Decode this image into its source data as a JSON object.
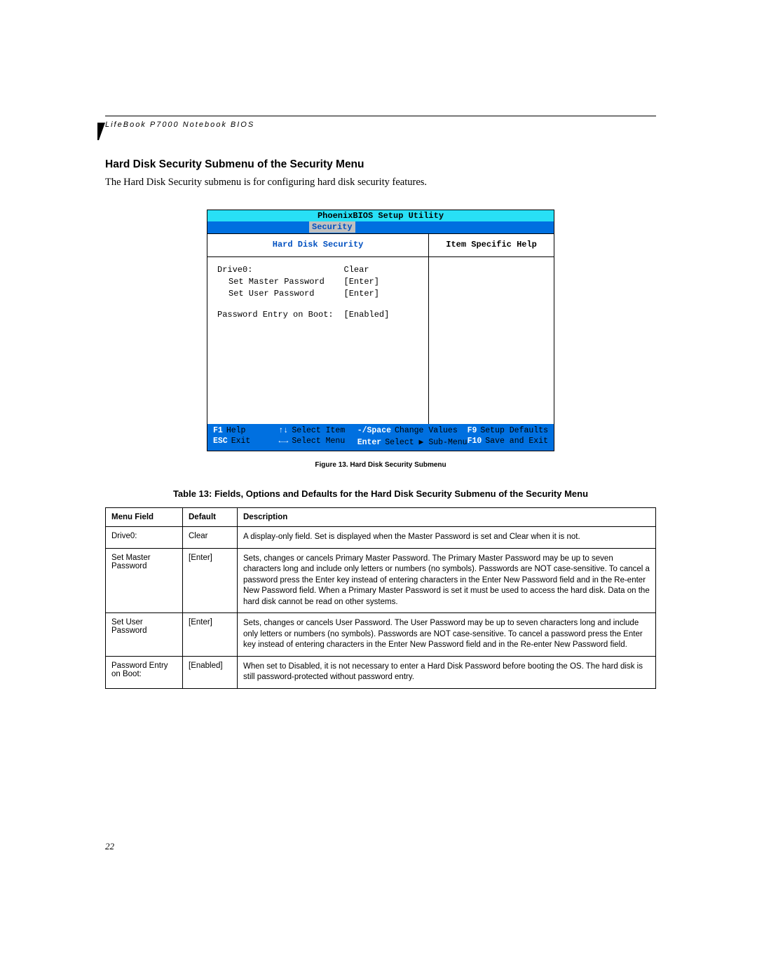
{
  "header": "LifeBook P7000 Notebook BIOS",
  "section_title": "Hard Disk Security Submenu of the Security Menu",
  "intro": "The Hard Disk Security submenu is for configuring hard disk security features.",
  "bios": {
    "title": "PhoenixBIOS Setup Utility",
    "menu_tab": "Security",
    "left_title": "Hard Disk Security",
    "right_title": "Item Specific Help",
    "rows": [
      {
        "label": "Drive0:",
        "value": "Clear",
        "indent": false
      },
      {
        "label": "Set Master Password",
        "value": "[Enter]",
        "indent": true
      },
      {
        "label": "Set User Password",
        "value": "[Enter]",
        "indent": true
      }
    ],
    "extra_row": {
      "label": "Password Entry on Boot:",
      "value": "[Enabled]"
    },
    "footer": [
      {
        "key": "F1",
        "text": "Help"
      },
      {
        "key": "↑↓",
        "text": "Select Item"
      },
      {
        "key": "-/Space",
        "text": "Change Values"
      },
      {
        "key": "F9",
        "text": "Setup Defaults"
      },
      {
        "key": "ESC",
        "text": "Exit"
      },
      {
        "key": "←→",
        "text": "Select Menu"
      },
      {
        "key": "Enter",
        "text": "Select ▶ Sub-Menu"
      },
      {
        "key": "F10",
        "text": "Save and Exit"
      }
    ]
  },
  "figure_caption": "Figure 13.    Hard Disk Security Submenu",
  "table_title": "Table 13: Fields, Options and Defaults for the Hard Disk Security Submenu of the Security Menu",
  "table": {
    "headers": [
      "Menu Field",
      "Default",
      "Description"
    ],
    "rows": [
      {
        "field": "Drive0:",
        "default": "Clear",
        "desc": "A display-only field. Set is displayed when the Master Password is set and Clear when it is not."
      },
      {
        "field": "Set Master Password",
        "default": "[Enter]",
        "desc": "Sets, changes or cancels Primary Master Password. The Primary Master Password may be up to seven characters long and include only letters or numbers (no symbols). Passwords are NOT case-sensitive. To cancel a password press the Enter key instead of entering characters in the Enter New Password field and in the Re-enter New Password field. When a Primary Master Password is set it must be used to access the hard disk. Data on the hard disk cannot be read on other systems."
      },
      {
        "field": "Set User Password",
        "default": "[Enter]",
        "desc": "Sets, changes or cancels User Password. The User Password may be up to seven characters long and include only letters or numbers (no symbols). Passwords are NOT case-sensitive. To cancel a password press the Enter key instead of entering characters in the Enter New Password field and in the Re-enter New Password field."
      },
      {
        "field": "Password Entry on Boot:",
        "default": "[Enabled]",
        "desc": "When set to Disabled, it is not necessary to enter a Hard Disk Password before booting the OS. The hard disk is still password-protected without password entry."
      }
    ]
  },
  "page_number": "22"
}
